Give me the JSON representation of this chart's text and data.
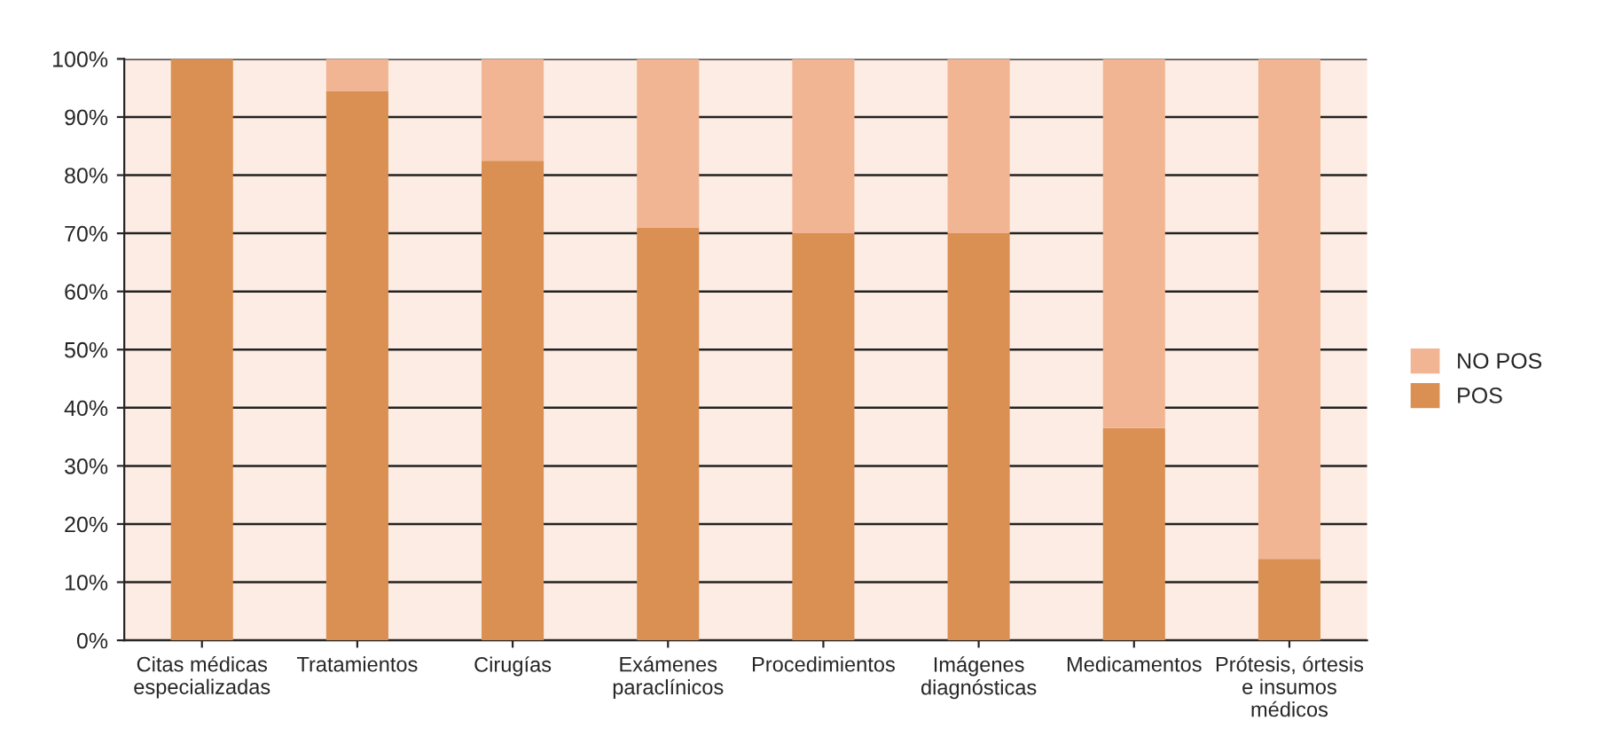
{
  "chart_data": {
    "type": "bar",
    "stacked": true,
    "categories": [
      "Citas médicas\nespecializadas",
      "Tratamientos",
      "Cirugías",
      "Exámenes\nparaclínicos",
      "Procedimientos",
      "Imágenes\ndiagnósticas",
      "Medicamentos",
      "Prótesis, órtesis\ne insumos\nmédicos"
    ],
    "series": [
      {
        "name": "POS",
        "color": "#d99052",
        "values": [
          100,
          94.5,
          82.5,
          71,
          70,
          70,
          36.5,
          14
        ]
      },
      {
        "name": "NO POS",
        "color": "#f2b594",
        "values": [
          0,
          5.5,
          17.5,
          29,
          30,
          30,
          63.5,
          86
        ]
      }
    ],
    "ylim": [
      0,
      100
    ],
    "yticks": [
      {
        "value": 0,
        "label": "0%"
      },
      {
        "value": 10,
        "label": "10%"
      },
      {
        "value": 20,
        "label": "20%"
      },
      {
        "value": 30,
        "label": "30%"
      },
      {
        "value": 40,
        "label": "40%"
      },
      {
        "value": 50,
        "label": "50%"
      },
      {
        "value": 60,
        "label": "60%"
      },
      {
        "value": 70,
        "label": "70%"
      },
      {
        "value": 80,
        "label": "80%"
      },
      {
        "value": 90,
        "label": "90%"
      },
      {
        "value": 100,
        "label": "100%"
      }
    ],
    "grid": "y",
    "legend": "right"
  }
}
